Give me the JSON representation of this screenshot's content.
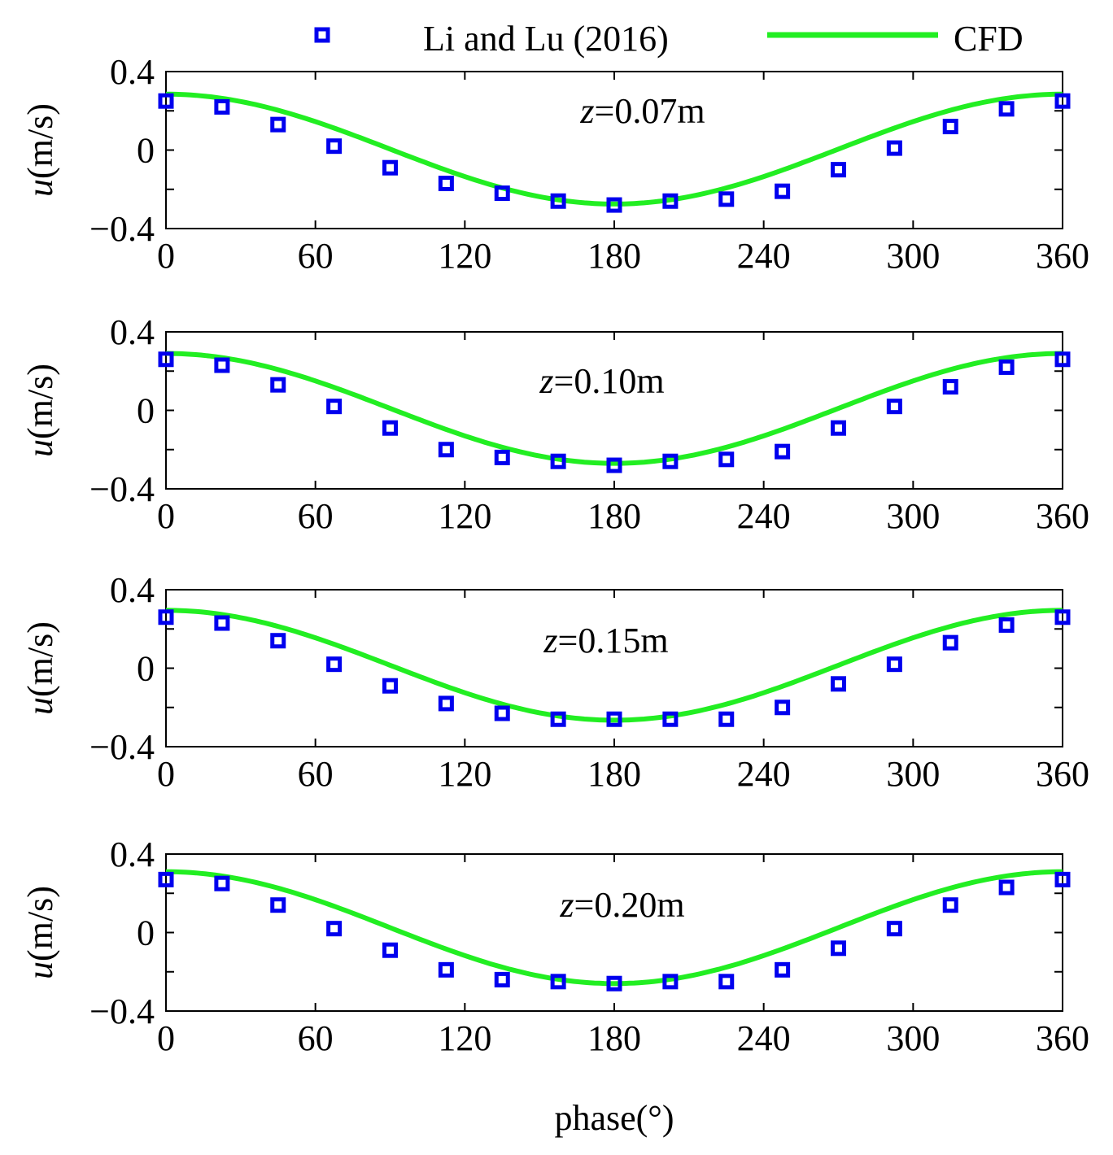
{
  "legend": {
    "markers_label": "Li and Lu (2016)",
    "line_label": "CFD",
    "position": "top-center"
  },
  "colors": {
    "markers": "#0000ee",
    "line": "#22ee22"
  },
  "chart_data": [
    {
      "type": "line",
      "annotation_var": "z",
      "annotation_value": "=0.07m",
      "xlabel": "",
      "ylabel_var": "u",
      "ylabel_unit": "(m/s)",
      "xlim": [
        0,
        360
      ],
      "ylim": [
        -0.4,
        0.4
      ],
      "xticks": [
        "0",
        "60",
        "120",
        "180",
        "240",
        "300",
        "360"
      ],
      "yticks": [
        "0.4",
        "0",
        "−0.4"
      ],
      "cfd": {
        "amplitude": 0.28,
        "offset": 0.005
      },
      "measured": {
        "x": [
          0,
          22.5,
          45,
          67.5,
          90,
          112.5,
          135,
          157.5,
          180,
          202.5,
          225,
          247.5,
          270,
          292.5,
          315,
          337.5,
          360
        ],
        "y": [
          0.25,
          0.22,
          0.13,
          0.02,
          -0.09,
          -0.17,
          -0.22,
          -0.26,
          -0.28,
          -0.26,
          -0.25,
          -0.21,
          -0.1,
          0.01,
          0.12,
          0.21,
          0.25
        ]
      }
    },
    {
      "type": "line",
      "annotation_var": "z",
      "annotation_value": "=0.10m",
      "xlabel": "",
      "ylabel_var": "u",
      "ylabel_unit": "(m/s)",
      "xlim": [
        0,
        360
      ],
      "ylim": [
        -0.4,
        0.4
      ],
      "xticks": [
        "0",
        "60",
        "120",
        "180",
        "240",
        "300",
        "360"
      ],
      "yticks": [
        "0.4",
        "0",
        "−0.4"
      ],
      "cfd": {
        "amplitude": 0.28,
        "offset": 0.01
      },
      "measured": {
        "x": [
          0,
          22.5,
          45,
          67.5,
          90,
          112.5,
          135,
          157.5,
          180,
          202.5,
          225,
          247.5,
          270,
          292.5,
          315,
          337.5,
          360
        ],
        "y": [
          0.26,
          0.23,
          0.13,
          0.02,
          -0.09,
          -0.2,
          -0.24,
          -0.26,
          -0.28,
          -0.26,
          -0.25,
          -0.21,
          -0.09,
          0.02,
          0.12,
          0.22,
          0.26
        ]
      }
    },
    {
      "type": "line",
      "annotation_var": "z",
      "annotation_value": "=0.15m",
      "xlabel": "",
      "ylabel_var": "u",
      "ylabel_unit": "(m/s)",
      "xlim": [
        0,
        360
      ],
      "ylim": [
        -0.4,
        0.4
      ],
      "xticks": [
        "0",
        "60",
        "120",
        "180",
        "240",
        "300",
        "360"
      ],
      "yticks": [
        "0.4",
        "0",
        "−0.4"
      ],
      "cfd": {
        "amplitude": 0.28,
        "offset": 0.015
      },
      "measured": {
        "x": [
          0,
          22.5,
          45,
          67.5,
          90,
          112.5,
          135,
          157.5,
          180,
          202.5,
          225,
          247.5,
          270,
          292.5,
          315,
          337.5,
          360
        ],
        "y": [
          0.26,
          0.23,
          0.14,
          0.02,
          -0.09,
          -0.18,
          -0.23,
          -0.26,
          -0.26,
          -0.26,
          -0.26,
          -0.2,
          -0.08,
          0.02,
          0.13,
          0.22,
          0.26
        ]
      }
    },
    {
      "type": "line",
      "annotation_var": "z",
      "annotation_value": "=0.20m",
      "xlabel": "phase(°)",
      "ylabel_var": "u",
      "ylabel_unit": "(m/s)",
      "xlim": [
        0,
        360
      ],
      "ylim": [
        -0.4,
        0.4
      ],
      "xticks": [
        "0",
        "60",
        "120",
        "180",
        "240",
        "300",
        "360"
      ],
      "yticks": [
        "0.4",
        "0",
        "−0.4"
      ],
      "cfd": {
        "amplitude": 0.285,
        "offset": 0.025
      },
      "measured": {
        "x": [
          0,
          22.5,
          45,
          67.5,
          90,
          112.5,
          135,
          157.5,
          180,
          202.5,
          225,
          247.5,
          270,
          292.5,
          315,
          337.5,
          360
        ],
        "y": [
          0.27,
          0.25,
          0.14,
          0.02,
          -0.09,
          -0.19,
          -0.24,
          -0.25,
          -0.26,
          -0.25,
          -0.25,
          -0.19,
          -0.08,
          0.02,
          0.14,
          0.23,
          0.27
        ]
      }
    }
  ]
}
